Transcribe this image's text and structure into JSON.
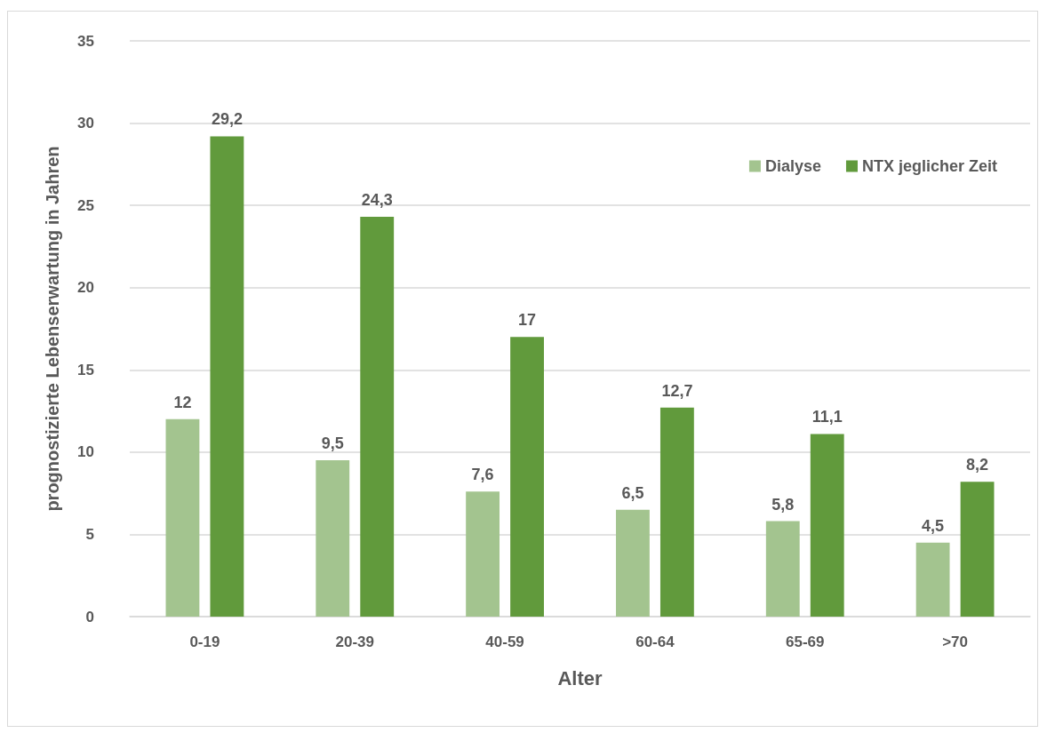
{
  "chart_data": {
    "type": "bar",
    "xlabel": "Alter",
    "ylabel": "prognostizierte Lebenserwartung in Jahren",
    "categories": [
      "0-19",
      "20-39",
      "40-59",
      "60-64",
      "65-69",
      ">70"
    ],
    "series": [
      {
        "name": "Dialyse",
        "color": "#a3c48f",
        "values": [
          12,
          9.5,
          7.6,
          6.5,
          5.8,
          4.5
        ],
        "value_labels": [
          "12",
          "9,5",
          "7,6",
          "6,5",
          "5,8",
          "4,5"
        ]
      },
      {
        "name": "NTX jeglicher Zeit",
        "color": "#619a3c",
        "values": [
          29.2,
          24.3,
          17,
          12.7,
          11.1,
          8.2
        ],
        "value_labels": [
          "29,2",
          "24,3",
          "17",
          "12,7",
          "11,1",
          "8,2"
        ]
      }
    ],
    "ylim": [
      0,
      35
    ],
    "yticks": [
      0,
      5,
      10,
      15,
      20,
      25,
      30,
      35
    ],
    "grid": "y",
    "legend": "top right"
  }
}
